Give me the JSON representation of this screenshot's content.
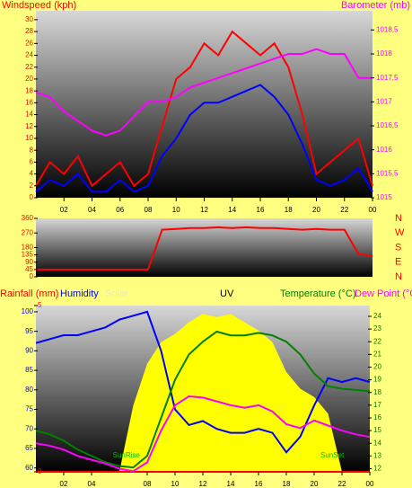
{
  "chart_data": [
    {
      "type": "line",
      "ylabel": "Windspeed (kph)",
      "y2label": "Barometer (mb)",
      "x": [
        0,
        1,
        2,
        3,
        4,
        5,
        6,
        7,
        8,
        9,
        10,
        11,
        12,
        13,
        14,
        15,
        16,
        17,
        18,
        19,
        20,
        21,
        22,
        23,
        24
      ],
      "xlim": [
        0,
        24
      ],
      "xticks": [
        {
          "value": 2,
          "label": "02"
        },
        {
          "value": 4,
          "label": "04"
        },
        {
          "value": 6,
          "label": "06"
        },
        {
          "value": 8,
          "label": "08"
        },
        10,
        12,
        14,
        16,
        18,
        20,
        22,
        {
          "value": 24,
          "label": "00"
        }
      ],
      "ylim": [
        0,
        31.5
      ],
      "yticks": [
        0,
        2,
        4,
        6,
        8,
        10,
        12,
        14,
        16,
        18,
        20,
        22,
        24,
        26,
        28,
        30
      ],
      "y2lim": [
        1015,
        1018.9
      ],
      "y2ticks": [
        1015,
        {
          "value": 1015.5,
          "label": "1015,5"
        },
        1016,
        {
          "value": 1016.5,
          "label": "1016,5"
        },
        1017,
        {
          "value": 1017.5,
          "label": "1017,5"
        },
        1018,
        {
          "value": 1018.5,
          "label": "1018,5"
        }
      ],
      "series": [
        {
          "color": "#ff0000",
          "axis": "y",
          "values": [
            2,
            6,
            4,
            7,
            2,
            4,
            6,
            2,
            4,
            12,
            20,
            22,
            26,
            24,
            28,
            26,
            24,
            26,
            22,
            14,
            4,
            6,
            8,
            10,
            2
          ]
        },
        {
          "color": "#0000ff",
          "axis": "y",
          "values": [
            1,
            3,
            2,
            4,
            1,
            1,
            3,
            1,
            2,
            7,
            10,
            14,
            16,
            16,
            17,
            18,
            19,
            17,
            14,
            9,
            3,
            2,
            3,
            5,
            1
          ]
        },
        {
          "color": "#ff00ff",
          "axis": "y2",
          "values": [
            1017.2,
            1017.1,
            1016.8,
            1016.6,
            1016.4,
            1016.3,
            1016.4,
            1016.7,
            1017.0,
            1017.0,
            1017.1,
            1017.3,
            1017.4,
            1017.5,
            1017.6,
            1017.7,
            1017.8,
            1017.9,
            1018.0,
            1018.0,
            1018.1,
            1018.0,
            1018.0,
            1017.5,
            1017.5
          ]
        }
      ]
    },
    {
      "type": "line",
      "x": [
        0,
        1,
        2,
        3,
        4,
        5,
        6,
        7,
        8,
        9,
        10,
        11,
        12,
        13,
        14,
        15,
        16,
        17,
        18,
        19,
        20,
        21,
        22,
        23,
        24
      ],
      "xlim": [
        0,
        24
      ],
      "ylim": [
        0,
        360
      ],
      "yticks": [
        0,
        45,
        90,
        135,
        180,
        270,
        360
      ],
      "right_labels": [
        "N",
        "W",
        "S",
        "E",
        "N"
      ],
      "series": [
        {
          "color": "#ff0000",
          "axis": "y",
          "values": [
            45,
            45,
            45,
            45,
            45,
            45,
            45,
            45,
            45,
            290,
            295,
            300,
            300,
            305,
            300,
            305,
            300,
            300,
            295,
            290,
            295,
            290,
            290,
            140,
            130
          ]
        }
      ]
    },
    {
      "type": "line",
      "x": [
        0,
        1,
        2,
        3,
        4,
        5,
        6,
        7,
        8,
        9,
        10,
        11,
        12,
        13,
        14,
        15,
        16,
        17,
        18,
        19,
        20,
        21,
        22,
        23,
        24
      ],
      "xlim": [
        0,
        24
      ],
      "xticks": [
        {
          "value": 2,
          "label": "02"
        },
        {
          "value": 4,
          "label": "04"
        },
        {
          "value": 8,
          "label": "08"
        },
        10,
        12,
        14,
        16,
        18,
        20,
        22,
        {
          "value": 24,
          "label": "00"
        }
      ],
      "ylim": [
        59,
        101.6
      ],
      "yticks": [
        60,
        65,
        70,
        75,
        80,
        85,
        90,
        95,
        100
      ],
      "y2lim": [
        11.75,
        24.85
      ],
      "y2ticks": [
        12,
        13,
        14,
        15,
        16,
        17,
        18,
        19,
        20,
        21,
        22,
        23,
        24
      ],
      "y3lim": [
        0,
        1000
      ],
      "y4lim": [
        0,
        5
      ],
      "y4ticks": [
        0,
        5
      ],
      "annotations": [
        {
          "text": "UV"
        },
        {
          "text": "SunRise",
          "x": 6.5
        },
        {
          "text": "SunSet",
          "x": 21.3
        }
      ],
      "series": [
        {
          "name": "Rainfall (mm)",
          "color": "#ff0000",
          "axis": "y4",
          "values": [
            0,
            0,
            0,
            0,
            0,
            0,
            0,
            0,
            0,
            0,
            0,
            0,
            0,
            0,
            0,
            0,
            0,
            0,
            0,
            0,
            0,
            0,
            0,
            0,
            0
          ]
        },
        {
          "name": "Humidity",
          "color": "#0000ff",
          "axis": "y",
          "values": [
            92,
            93,
            94,
            94,
            95,
            96,
            98,
            99,
            100,
            90,
            75,
            71,
            72,
            70,
            69,
            69,
            70,
            69,
            64,
            68,
            76,
            83,
            82,
            83,
            82
          ]
        },
        {
          "name": "Solar",
          "color": "#ffff00",
          "axis": "y3",
          "area": true,
          "values": [
            0,
            0,
            0,
            0,
            0,
            0,
            0,
            400,
            650,
            780,
            830,
            900,
            950,
            930,
            950,
            900,
            850,
            780,
            600,
            500,
            450,
            350,
            0,
            0,
            0
          ]
        },
        {
          "name": "Temperature (°C)",
          "color": "#008000",
          "axis": "y2",
          "values": [
            15,
            14.7,
            14.2,
            13.5,
            13,
            12.5,
            12.2,
            12.1,
            13,
            16,
            19,
            21,
            22,
            22.8,
            22.5,
            22.5,
            22.7,
            22.5,
            22,
            21,
            19.5,
            18.5,
            18.3,
            18.2,
            18.1
          ]
        },
        {
          "name": "Dew Point (°C",
          "color": "#ff00ff",
          "axis": "y2",
          "values": [
            14,
            13.8,
            13.5,
            13,
            12.7,
            12.4,
            12,
            11.8,
            12.5,
            15,
            17,
            17.7,
            17.6,
            17.3,
            17,
            16.8,
            17,
            16.5,
            15.5,
            15.2,
            15.8,
            15.4,
            15,
            14.7,
            14.5
          ]
        }
      ]
    }
  ]
}
